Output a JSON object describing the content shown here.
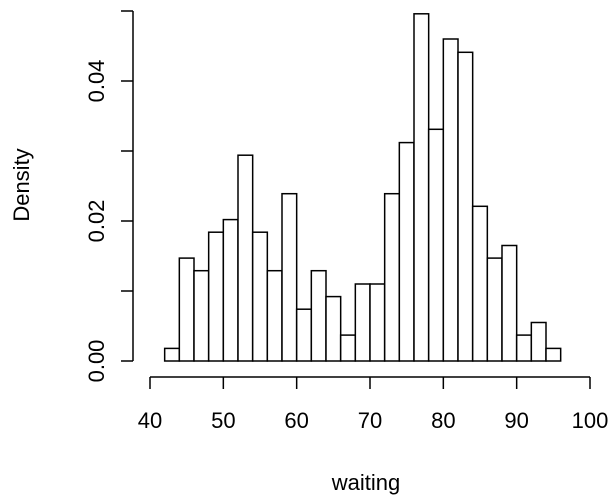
{
  "chart_data": {
    "type": "bar",
    "subtype": "histogram",
    "title": "",
    "xlabel": "waiting",
    "ylabel": "Density",
    "bin_width": 2,
    "bins": [
      {
        "start": 42,
        "end": 44,
        "density": 0.0018
      },
      {
        "start": 44,
        "end": 46,
        "density": 0.0147
      },
      {
        "start": 46,
        "end": 48,
        "density": 0.0129
      },
      {
        "start": 48,
        "end": 50,
        "density": 0.0184
      },
      {
        "start": 50,
        "end": 52,
        "density": 0.0202
      },
      {
        "start": 52,
        "end": 54,
        "density": 0.0294
      },
      {
        "start": 54,
        "end": 56,
        "density": 0.0184
      },
      {
        "start": 56,
        "end": 58,
        "density": 0.0129
      },
      {
        "start": 58,
        "end": 60,
        "density": 0.0239
      },
      {
        "start": 60,
        "end": 62,
        "density": 0.0074
      },
      {
        "start": 62,
        "end": 64,
        "density": 0.0129
      },
      {
        "start": 64,
        "end": 66,
        "density": 0.0092
      },
      {
        "start": 66,
        "end": 68,
        "density": 0.0037
      },
      {
        "start": 68,
        "end": 70,
        "density": 0.011
      },
      {
        "start": 70,
        "end": 72,
        "density": 0.011
      },
      {
        "start": 72,
        "end": 74,
        "density": 0.0239
      },
      {
        "start": 74,
        "end": 76,
        "density": 0.0312
      },
      {
        "start": 76,
        "end": 78,
        "density": 0.0496
      },
      {
        "start": 78,
        "end": 80,
        "density": 0.0331
      },
      {
        "start": 80,
        "end": 82,
        "density": 0.046
      },
      {
        "start": 82,
        "end": 84,
        "density": 0.0441
      },
      {
        "start": 84,
        "end": 86,
        "density": 0.0221
      },
      {
        "start": 86,
        "end": 88,
        "density": 0.0147
      },
      {
        "start": 88,
        "end": 90,
        "density": 0.0165
      },
      {
        "start": 90,
        "end": 92,
        "density": 0.0037
      },
      {
        "start": 92,
        "end": 94,
        "density": 0.0055
      },
      {
        "start": 94,
        "end": 96,
        "density": 0.0018
      }
    ],
    "xlim": [
      40,
      100
    ],
    "ylim": [
      0,
      0.05
    ],
    "x_ticks": [
      40,
      50,
      60,
      70,
      80,
      90,
      100
    ],
    "y_ticks": [
      0,
      0.01,
      0.02,
      0.03,
      0.04,
      0.05
    ],
    "y_tick_labels": [
      {
        "value": 0,
        "label": "0.00"
      },
      {
        "value": 0.02,
        "label": "0.02"
      },
      {
        "value": 0.04,
        "label": "0.04"
      }
    ],
    "grid": false,
    "legend": "none",
    "bar_fill": "#ffffff",
    "bar_stroke": "#000000"
  }
}
